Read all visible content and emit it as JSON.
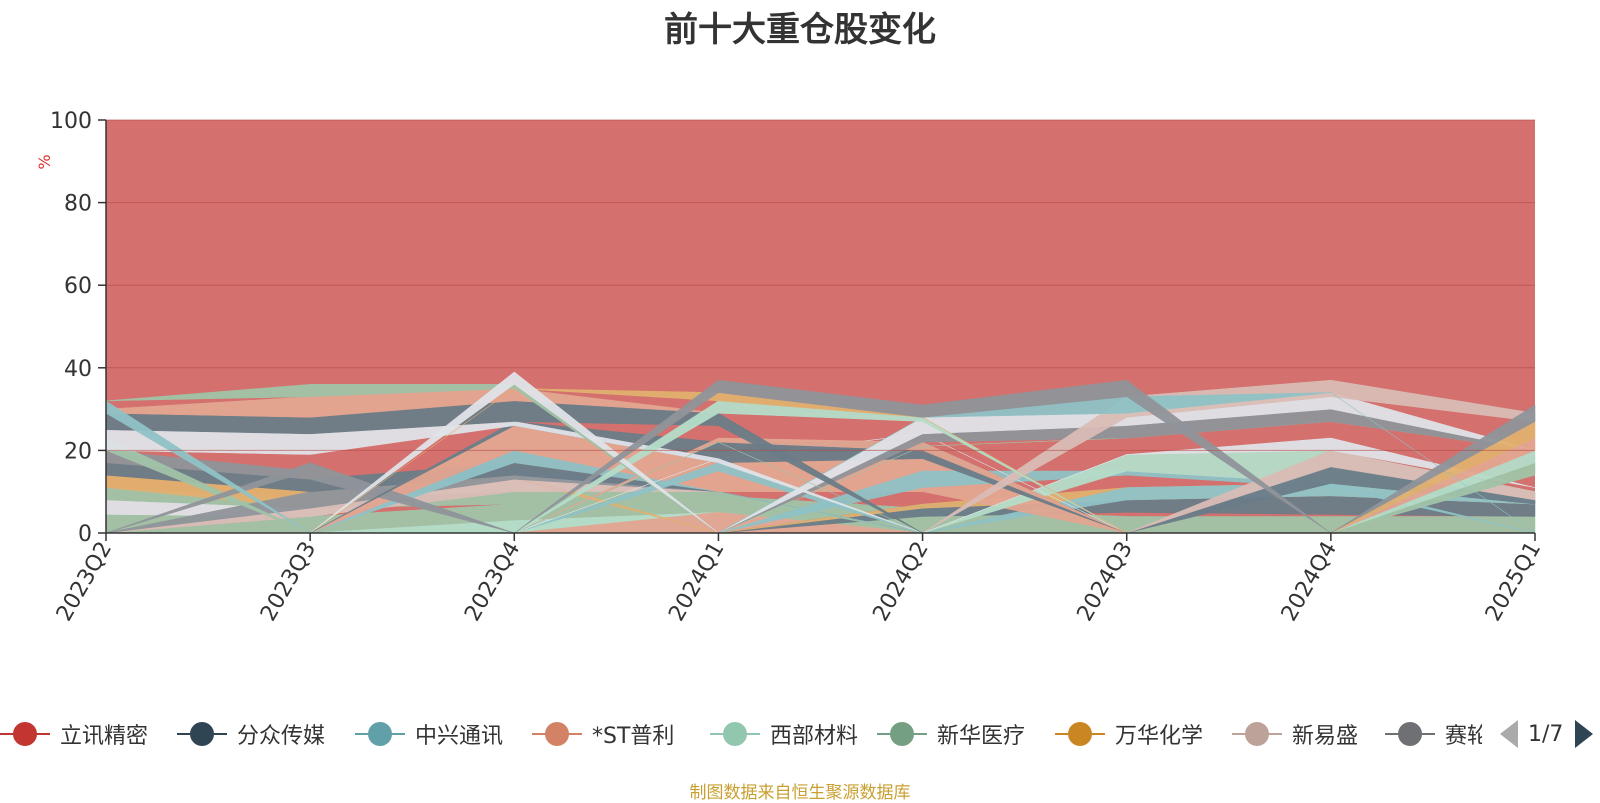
{
  "title": "前十大重仓股变化",
  "source_note": "制图数据来自恒生聚源数据库",
  "pager": {
    "text": "1/7"
  },
  "colors": {
    "background_area": "#d4706d",
    "axis": "#333333",
    "unit": "#e03030"
  },
  "legend": [
    {
      "name": "立讯精密",
      "color": "#c23531"
    },
    {
      "name": "分众传媒",
      "color": "#2f4554"
    },
    {
      "name": "中兴通讯",
      "color": "#61a0a8"
    },
    {
      "name": "*ST普利",
      "color": "#d48265"
    },
    {
      "name": "西部材料",
      "color": "#91c7ae"
    },
    {
      "name": "新华医疗",
      "color": "#749f83"
    },
    {
      "name": "万华化学",
      "color": "#ca8622"
    },
    {
      "name": "新易盛",
      "color": "#bda29a"
    },
    {
      "name": "赛轮轮胎",
      "color": "#6e7074"
    }
  ],
  "chart_data": {
    "type": "area",
    "title": "前十大重仓股变化",
    "ylabel": "%",
    "ylim": [
      0,
      100
    ],
    "yticks": [
      "0",
      "20",
      "40",
      "60",
      "80",
      "100"
    ],
    "categories": [
      "2023Q2",
      "2023Q3",
      "2023Q4",
      "2024Q1",
      "2024Q2",
      "2024Q3",
      "2024Q4",
      "2025Q1"
    ],
    "grid": true,
    "legend_position": "bottom",
    "background_band": {
      "from": 0,
      "to": 100,
      "color": "#d4706d"
    },
    "bands": [
      {
        "color": "#a0c3a8",
        "lower": [
          0,
          0,
          0,
          0,
          0,
          0,
          0,
          0
        ],
        "upper": [
          4.5,
          4,
          7,
          9,
          6,
          4,
          4,
          4
        ]
      },
      {
        "color": "#b4dcc8",
        "lower": [
          0,
          0,
          0,
          0,
          0,
          0,
          0,
          0
        ],
        "upper": [
          0,
          0,
          3,
          5,
          0,
          0,
          0,
          0
        ]
      },
      {
        "color": "#e3a591",
        "lower": [
          0,
          0,
          0,
          0,
          0,
          0,
          0,
          0
        ],
        "upper": [
          0,
          0,
          0,
          5,
          0,
          0,
          0,
          0
        ]
      },
      {
        "color": "#6a7c88",
        "lower": [
          0,
          0,
          0,
          0,
          4,
          5,
          4.5,
          4
        ],
        "upper": [
          0,
          0,
          0,
          0,
          7,
          8,
          9,
          7
        ]
      },
      {
        "color": "#e2b070",
        "lower": [
          0,
          0,
          0,
          0,
          6,
          8,
          9,
          7
        ],
        "upper": [
          0,
          0,
          0,
          0,
          7,
          11,
          12,
          8
        ]
      },
      {
        "color": "#8fc2c6",
        "lower": [
          0,
          0,
          0,
          0,
          0,
          8,
          9,
          7
        ],
        "upper": [
          0,
          0,
          0,
          0,
          0,
          11,
          12,
          8
        ]
      },
      {
        "color": "#dfe3e8",
        "lower": [
          4.5,
          4,
          10,
          10,
          0,
          0,
          0,
          0
        ],
        "upper": [
          8,
          6,
          14,
          10,
          0,
          0,
          0,
          0
        ]
      },
      {
        "color": "#a0c3a8",
        "lower": [
          8,
          6,
          7,
          9,
          0,
          0,
          0,
          0
        ],
        "upper": [
          11,
          8,
          10,
          10,
          0,
          0,
          0,
          0
        ]
      },
      {
        "color": "#e2b070",
        "lower": [
          11,
          6,
          13,
          0,
          0,
          0,
          0,
          0
        ],
        "upper": [
          14,
          10,
          14,
          0,
          0,
          0,
          0,
          0
        ]
      },
      {
        "color": "#d9bcb5",
        "lower": [
          0,
          4,
          10,
          10,
          0,
          0,
          0,
          0
        ],
        "upper": [
          0,
          6,
          14,
          10,
          0,
          0,
          0,
          0
        ]
      },
      {
        "color": "#8f949a",
        "lower": [
          0,
          6,
          13,
          10,
          0,
          0,
          0,
          0
        ],
        "upper": [
          0,
          10,
          16,
          10,
          0,
          0,
          0,
          0
        ]
      },
      {
        "color": "#6a7c88",
        "lower": [
          14,
          10,
          14,
          10,
          0,
          0,
          0,
          0
        ],
        "upper": [
          17,
          13,
          17,
          10,
          0,
          0,
          0,
          0
        ]
      },
      {
        "color": "#8fc2c6",
        "lower": [
          0,
          0,
          17,
          10,
          0,
          0,
          0,
          0
        ],
        "upper": [
          0,
          0,
          20,
          10,
          0,
          0,
          0,
          0
        ]
      },
      {
        "color": "#e3a591",
        "lower": [
          0,
          0,
          20,
          10,
          10,
          0,
          0,
          0
        ],
        "upper": [
          0,
          0,
          27,
          18,
          18,
          0,
          0,
          0
        ]
      },
      {
        "color": "#8fc2c6",
        "lower": [
          0,
          0,
          0,
          0,
          11,
          14,
          11,
          0
        ],
        "upper": [
          0,
          0,
          0,
          0,
          15,
          15,
          12,
          0
        ]
      },
      {
        "color": "#b4dcc8",
        "lower": [
          0,
          0,
          0,
          0,
          0,
          15,
          12,
          8
        ],
        "upper": [
          0,
          0,
          0,
          0,
          0,
          19,
          20,
          10
        ]
      },
      {
        "color": "#6a7c88",
        "lower": [
          0,
          0,
          0,
          0,
          0,
          0,
          12,
          7
        ],
        "upper": [
          0,
          0,
          0,
          0,
          0,
          0,
          16,
          8
        ]
      },
      {
        "color": "#d9bcb5",
        "lower": [
          0,
          0,
          0,
          0,
          0,
          0,
          16,
          8
        ],
        "upper": [
          0,
          0,
          0,
          0,
          0,
          0,
          20,
          10
        ]
      },
      {
        "color": "#dfe3e8",
        "lower": [
          0,
          0,
          0,
          0,
          0,
          19,
          20,
          11
        ],
        "upper": [
          0,
          0,
          0,
          0,
          0,
          19,
          23,
          11
        ]
      },
      {
        "color": "#8f949a",
        "lower": [
          17,
          13,
          0,
          0,
          0,
          0,
          0,
          0
        ],
        "upper": [
          20,
          15,
          0,
          0,
          0,
          0,
          0,
          0
        ]
      },
      {
        "color": "#a0c3a8",
        "lower": [
          20,
          0,
          0,
          0,
          0,
          0,
          0,
          0
        ],
        "upper": [
          23,
          0,
          0,
          0,
          0,
          0,
          0,
          0
        ]
      },
      {
        "color": "#8f949a",
        "lower": [
          0,
          15,
          0,
          0,
          0,
          0,
          0,
          0
        ],
        "upper": [
          0,
          17,
          0,
          0,
          0,
          0,
          0,
          0
        ]
      },
      {
        "color": "#8fc2c6",
        "lower": [
          0,
          0,
          0,
          15,
          0,
          0,
          0,
          0
        ],
        "upper": [
          0,
          0,
          0,
          17,
          0,
          0,
          0,
          0
        ]
      },
      {
        "color": "#dfe3e8",
        "lower": [
          0,
          0,
          0,
          18,
          24,
          0,
          0,
          0
        ],
        "upper": [
          0,
          0,
          0,
          18,
          24,
          0,
          0,
          0
        ]
      },
      {
        "color": "#6a7c88",
        "lower": [
          0,
          0,
          26,
          17,
          18,
          0,
          0,
          0
        ],
        "upper": [
          0,
          0,
          27,
          22,
          22,
          0,
          0,
          0
        ]
      },
      {
        "color": "#e3a591",
        "lower": [
          0,
          0,
          0,
          22,
          20,
          0,
          0,
          0
        ],
        "upper": [
          0,
          0,
          0,
          23,
          22,
          0,
          0,
          0
        ]
      },
      {
        "color": "#a0c3a8",
        "lower": [
          0,
          0,
          0,
          0,
          21,
          23,
          27,
          20
        ],
        "upper": [
          0,
          0,
          0,
          0,
          21,
          23,
          27,
          20
        ]
      },
      {
        "color": "#8f949a",
        "lower": [
          0,
          0,
          0,
          0,
          22,
          23,
          27,
          20
        ],
        "upper": [
          0,
          0,
          0,
          0,
          24,
          26,
          30,
          20
        ]
      },
      {
        "color": "#dfe3e8",
        "lower": [
          0,
          0,
          0,
          0,
          24,
          26,
          30,
          20
        ],
        "upper": [
          0,
          0,
          0,
          0,
          28,
          29,
          34,
          20
        ]
      },
      {
        "color": "#a0c3a8",
        "lower": [
          0,
          0,
          0,
          0,
          0,
          0,
          0,
          14
        ],
        "upper": [
          0,
          0,
          0,
          0,
          0,
          0,
          0,
          17
        ]
      },
      {
        "color": "#b4dcc8",
        "lower": [
          0,
          0,
          0,
          0,
          0,
          0,
          0,
          17
        ],
        "upper": [
          0,
          0,
          0,
          0,
          0,
          0,
          0,
          20
        ]
      },
      {
        "color": "#e3a591",
        "lower": [
          0,
          0,
          0,
          0,
          0,
          0,
          0,
          20
        ],
        "upper": [
          0,
          0,
          0,
          0,
          0,
          0,
          0,
          23
        ]
      },
      {
        "color": "#e2b070",
        "lower": [
          0,
          0,
          0,
          0,
          0,
          0,
          0,
          23
        ],
        "upper": [
          0,
          0,
          0,
          0,
          0,
          0,
          0,
          27
        ]
      },
      {
        "color": "#d9bcb5",
        "lower": [
          0,
          0,
          0,
          0,
          0,
          28,
          33,
          27
        ],
        "upper": [
          0,
          0,
          0,
          0,
          0,
          33,
          37,
          29
        ]
      },
      {
        "color": "#8fc2c6",
        "lower": [
          0,
          0,
          0,
          0,
          28,
          29,
          34,
          0
        ],
        "upper": [
          0,
          0,
          0,
          0,
          28,
          33,
          34,
          0
        ]
      },
      {
        "color": "#dfe3e8",
        "lower": [
          20,
          19,
          26,
          17,
          0,
          0,
          0,
          0
        ],
        "upper": [
          25,
          24,
          27,
          18,
          0,
          0,
          0,
          0
        ]
      },
      {
        "color": "#a0c3a8",
        "lower": [
          0,
          0,
          0,
          22,
          0,
          0,
          0,
          0
        ],
        "upper": [
          0,
          0,
          0,
          22,
          0,
          0,
          0,
          0
        ]
      },
      {
        "color": "#6a7c88",
        "lower": [
          25,
          24,
          27,
          26,
          0,
          0,
          0,
          0
        ],
        "upper": [
          29,
          28,
          32,
          29,
          0,
          0,
          0,
          0
        ]
      },
      {
        "color": "#e3a591",
        "lower": [
          29,
          28,
          32,
          29,
          28,
          0,
          0,
          0
        ],
        "upper": [
          30,
          33,
          35,
          29,
          28,
          0,
          0,
          0
        ]
      },
      {
        "color": "#b4dcc8",
        "lower": [
          0,
          0,
          0,
          29,
          27,
          0,
          0,
          0
        ],
        "upper": [
          0,
          0,
          0,
          32,
          28,
          0,
          0,
          0
        ]
      },
      {
        "color": "#e2b070",
        "lower": [
          0,
          0,
          35,
          32,
          28,
          0,
          0,
          0
        ],
        "upper": [
          0,
          0,
          35,
          34,
          28,
          0,
          0,
          0
        ]
      },
      {
        "color": "#8fc2c6",
        "lower": [
          29,
          0,
          0,
          0,
          0,
          0,
          0,
          0
        ],
        "upper": [
          32,
          0,
          0,
          0,
          0,
          0,
          0,
          0
        ]
      },
      {
        "color": "#a0c3a8",
        "lower": [
          32,
          33,
          35,
          0,
          0,
          0,
          0,
          0
        ],
        "upper": [
          32,
          36,
          36,
          0,
          0,
          0,
          0,
          0
        ]
      },
      {
        "color": "#dfe3e8",
        "lower": [
          0,
          0,
          36,
          0,
          0,
          0,
          0,
          0
        ],
        "upper": [
          0,
          0,
          39,
          0,
          0,
          0,
          0,
          0
        ]
      },
      {
        "color": "#8f949a",
        "lower": [
          0,
          0,
          0,
          34,
          28,
          33,
          0,
          27
        ],
        "upper": [
          0,
          0,
          0,
          37,
          31,
          37,
          0,
          31
        ]
      }
    ]
  }
}
